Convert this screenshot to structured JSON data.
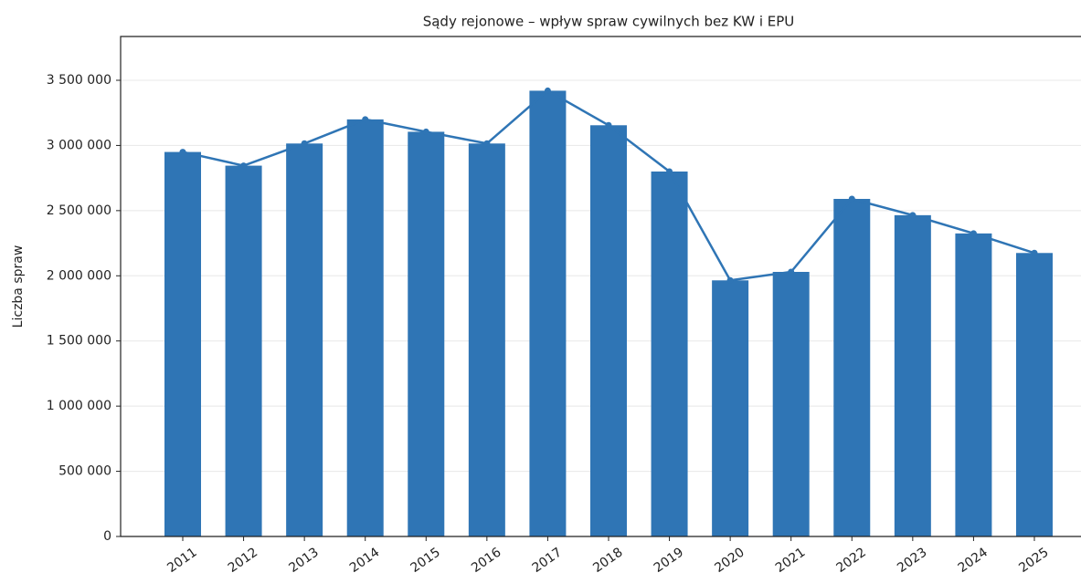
{
  "chart_data": {
    "type": "bar",
    "title": "Sądy rejonowe – wpływ spraw cywilnych bez KW i EPU",
    "y_label": "Liczba spraw",
    "categories": [
      "2011",
      "2012",
      "2013",
      "2014",
      "2015",
      "2016",
      "2017",
      "2018",
      "2019",
      "2020",
      "2021",
      "2022",
      "2023",
      "2024",
      "2025"
    ],
    "values": [
      2950000,
      2845000,
      3015000,
      3200000,
      3105000,
      3015000,
      3420000,
      3155000,
      2800000,
      1965000,
      2030000,
      2590000,
      2465000,
      2325000,
      2175000
    ],
    "color": "#2f75b5",
    "line": true,
    "ylim": [
      0,
      3836000
    ],
    "yticks": [
      0,
      {
        "value": 500000,
        "label": "500 000"
      },
      {
        "value": 1000000,
        "label": "1 000 000"
      },
      {
        "value": 1500000,
        "label": "1 500 000"
      },
      {
        "value": 2000000,
        "label": "2 000 000"
      },
      {
        "value": 2500000,
        "label": "2 500 000"
      },
      {
        "value": 3000000,
        "label": "3 000 000"
      },
      {
        "value": 3500000,
        "label": "3 500 000"
      }
    ],
    "grid": true
  }
}
